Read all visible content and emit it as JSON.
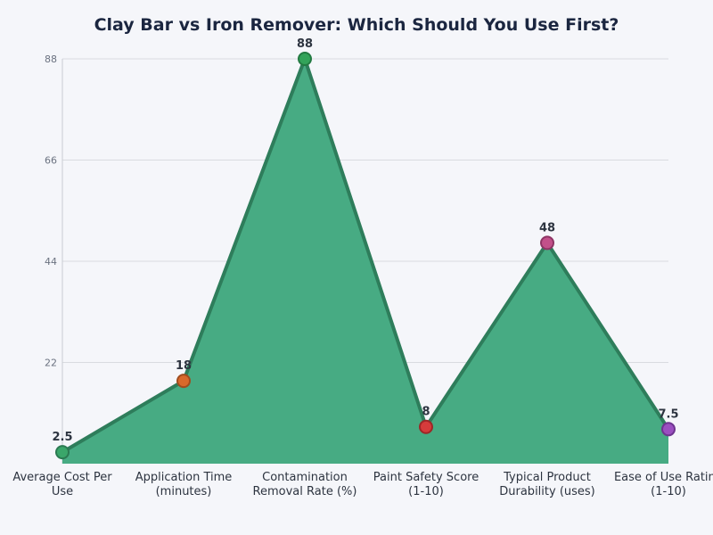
{
  "chart_data": {
    "type": "area",
    "title": "Clay Bar vs Iron Remover: Which Should You Use First?",
    "categories": [
      [
        "Average Cost Per",
        "Use"
      ],
      [
        "Application Time",
        "(minutes)"
      ],
      [
        "Contamination",
        "Removal Rate (%)"
      ],
      [
        "Paint Safety Score",
        "(1-10)"
      ],
      [
        "Typical Product",
        "Durability (uses)"
      ],
      [
        "Ease of Use Rating",
        "(1-10)"
      ]
    ],
    "values": [
      2.5,
      18,
      88,
      8,
      48,
      7.5
    ],
    "value_labels": [
      "2.5",
      "18",
      "88",
      "8",
      "48",
      "7.5"
    ],
    "point_colors": [
      "#3aa66a",
      "#d9692b",
      "#33a35a",
      "#d63b3b",
      "#c2508a",
      "#9b4fc0"
    ],
    "point_stroke_colors": [
      "#2b7a52",
      "#a04c1e",
      "#237a42",
      "#9c2727",
      "#8e3565",
      "#6e3590"
    ],
    "area_color": "#47ab83",
    "line_color": "#2e7d5b",
    "yticks": [
      22,
      44,
      66,
      88
    ],
    "ylim": [
      0,
      88
    ],
    "grid": true,
    "xlabel": "",
    "ylabel": ""
  }
}
